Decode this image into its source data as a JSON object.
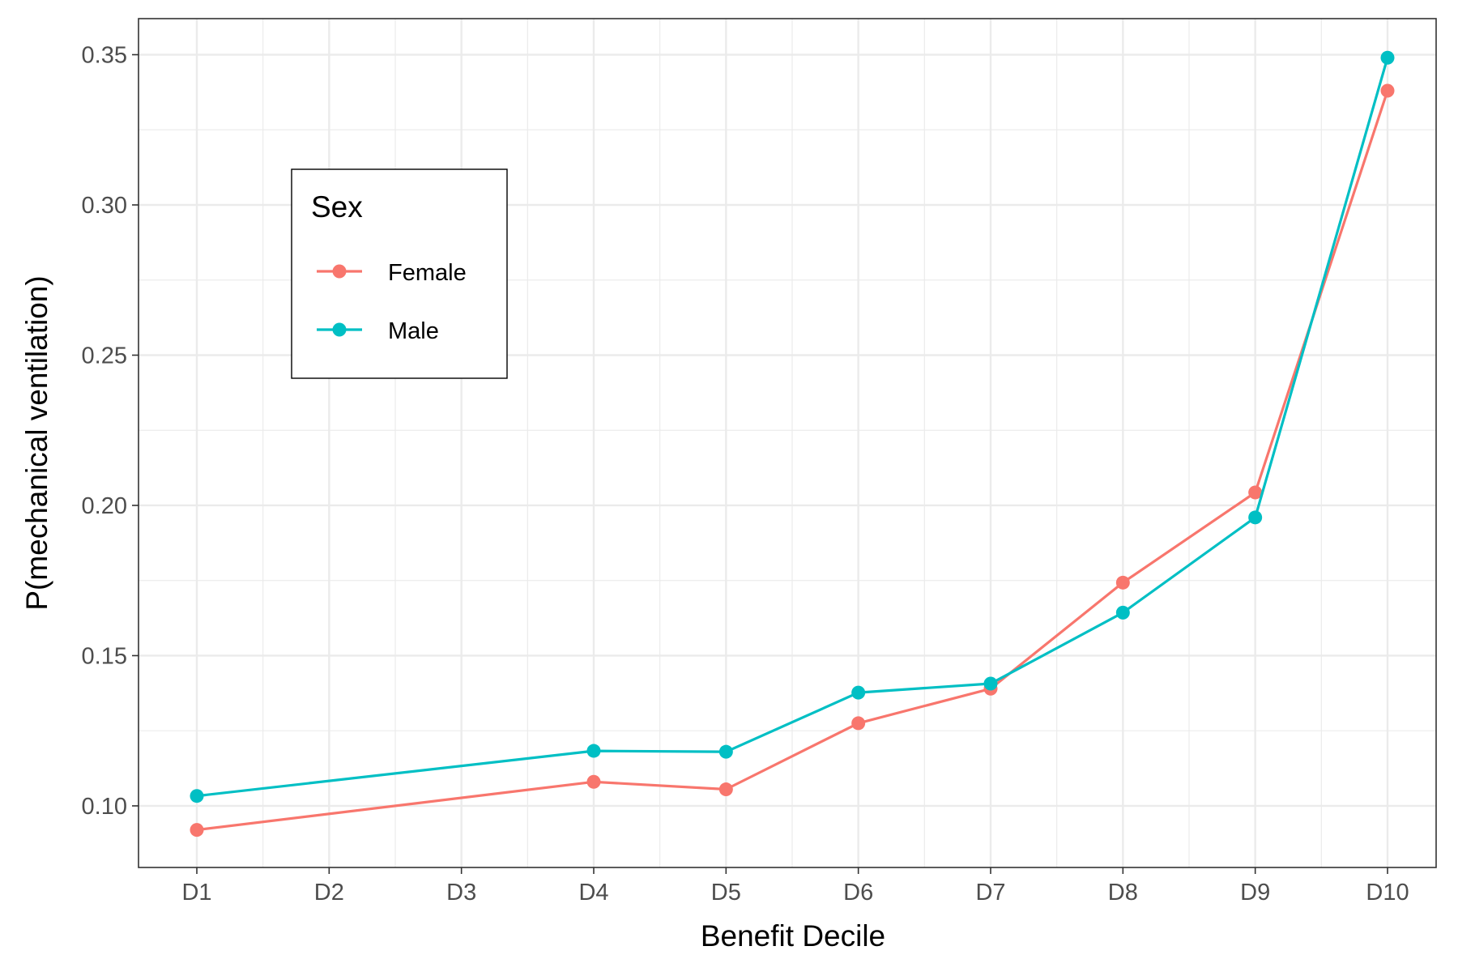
{
  "chart_data": {
    "type": "line",
    "title": "",
    "xlabel": "Benefit Decile",
    "ylabel": "P(mechanical ventilation)",
    "categories": [
      "D1",
      "D2",
      "D3",
      "D4",
      "D5",
      "D6",
      "D7",
      "D8",
      "D9",
      "D10"
    ],
    "yticks": [
      "0.10",
      "0.15",
      "0.20",
      "0.25",
      "0.30",
      "0.35"
    ],
    "ylim": [
      0.0795,
      0.362
    ],
    "grid": true,
    "legend": {
      "title": "Sex",
      "position": "top-left inside"
    },
    "series": [
      {
        "name": "Female",
        "color": "#F8766D",
        "points": [
          {
            "x": "D1",
            "y": 0.092
          },
          {
            "x": "D4",
            "y": 0.108
          },
          {
            "x": "D5",
            "y": 0.1055
          },
          {
            "x": "D6",
            "y": 0.1275
          },
          {
            "x": "D7",
            "y": 0.139
          },
          {
            "x": "D8",
            "y": 0.1743
          },
          {
            "x": "D9",
            "y": 0.2043
          },
          {
            "x": "D10",
            "y": 0.338
          }
        ]
      },
      {
        "name": "Male",
        "color": "#00BFC4",
        "points": [
          {
            "x": "D1",
            "y": 0.1033
          },
          {
            "x": "D4",
            "y": 0.1183
          },
          {
            "x": "D5",
            "y": 0.118
          },
          {
            "x": "D6",
            "y": 0.1377
          },
          {
            "x": "D7",
            "y": 0.1407
          },
          {
            "x": "D8",
            "y": 0.1643
          },
          {
            "x": "D9",
            "y": 0.196
          },
          {
            "x": "D10",
            "y": 0.349
          }
        ]
      }
    ]
  }
}
